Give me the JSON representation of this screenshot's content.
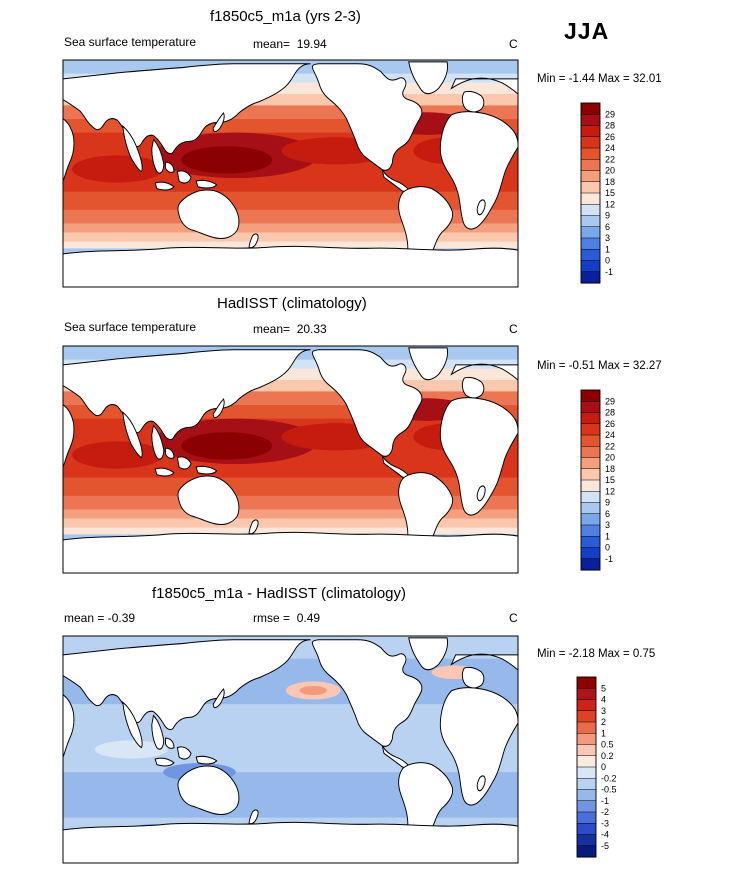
{
  "season": "JJA",
  "panels": [
    {
      "title": "f1850c5_m1a (yrs 2-3)",
      "left_label": "Sea surface temperature",
      "stat_label": "mean=",
      "stat_value": "19.94",
      "unit": "C",
      "minmax_text": "Min = -1.44 Max = 32.01",
      "min": -1.44,
      "max": 32.01,
      "levels": [
        "29",
        "28",
        "26",
        "24",
        "22",
        "20",
        "18",
        "15",
        "12",
        "9",
        "6",
        "3",
        "1",
        "0",
        "-1"
      ]
    },
    {
      "title": "HadISST (climatology)",
      "left_label": "Sea surface temperature",
      "stat_label": "mean=",
      "stat_value": "20.33",
      "unit": "C",
      "minmax_text": "Min = -0.51 Max = 32.27",
      "min": -0.51,
      "max": 32.27,
      "levels": [
        "29",
        "28",
        "26",
        "24",
        "22",
        "20",
        "18",
        "15",
        "12",
        "9",
        "6",
        "3",
        "1",
        "0",
        "-1"
      ]
    },
    {
      "title": "f1850c5_m1a - HadISST (climatology)",
      "left_label": "mean = -0.39",
      "stat_label": "rmse =",
      "stat_value": "0.49",
      "unit": "C",
      "minmax_text": "Min = -2.18 Max = 0.75",
      "min": -2.18,
      "max": 0.75,
      "levels": [
        "5",
        "4",
        "3",
        "2",
        "1",
        "0.5",
        "0.2",
        "0",
        "-0.2",
        "-0.5",
        "-1",
        "-2",
        "-3",
        "-4",
        "-5"
      ]
    }
  ],
  "colors": {
    "abs_scale": [
      "#8b0000",
      "#a50f15",
      "#c61b0f",
      "#d8351b",
      "#e3552f",
      "#ec7654",
      "#f4a07e",
      "#fbc7ad",
      "#fbe7da",
      "#d3e3f6",
      "#a9c8f0",
      "#7aa6ea",
      "#4f80e2",
      "#2b5cd8",
      "#153ec6",
      "#0c1f9a"
    ],
    "diff_scale": [
      "#8b0000",
      "#b0141b",
      "#cc2418",
      "#de4225",
      "#ea6a49",
      "#f39a7c",
      "#f9c7b3",
      "#fbeae0",
      "#d9e6f6",
      "#b9d2f1",
      "#96b8eb",
      "#6f95e3",
      "#4a6fd9",
      "#2b4dc8",
      "#15309f",
      "#0b1a7a"
    ],
    "land": "#ffffff",
    "coast": "#000000"
  }
}
